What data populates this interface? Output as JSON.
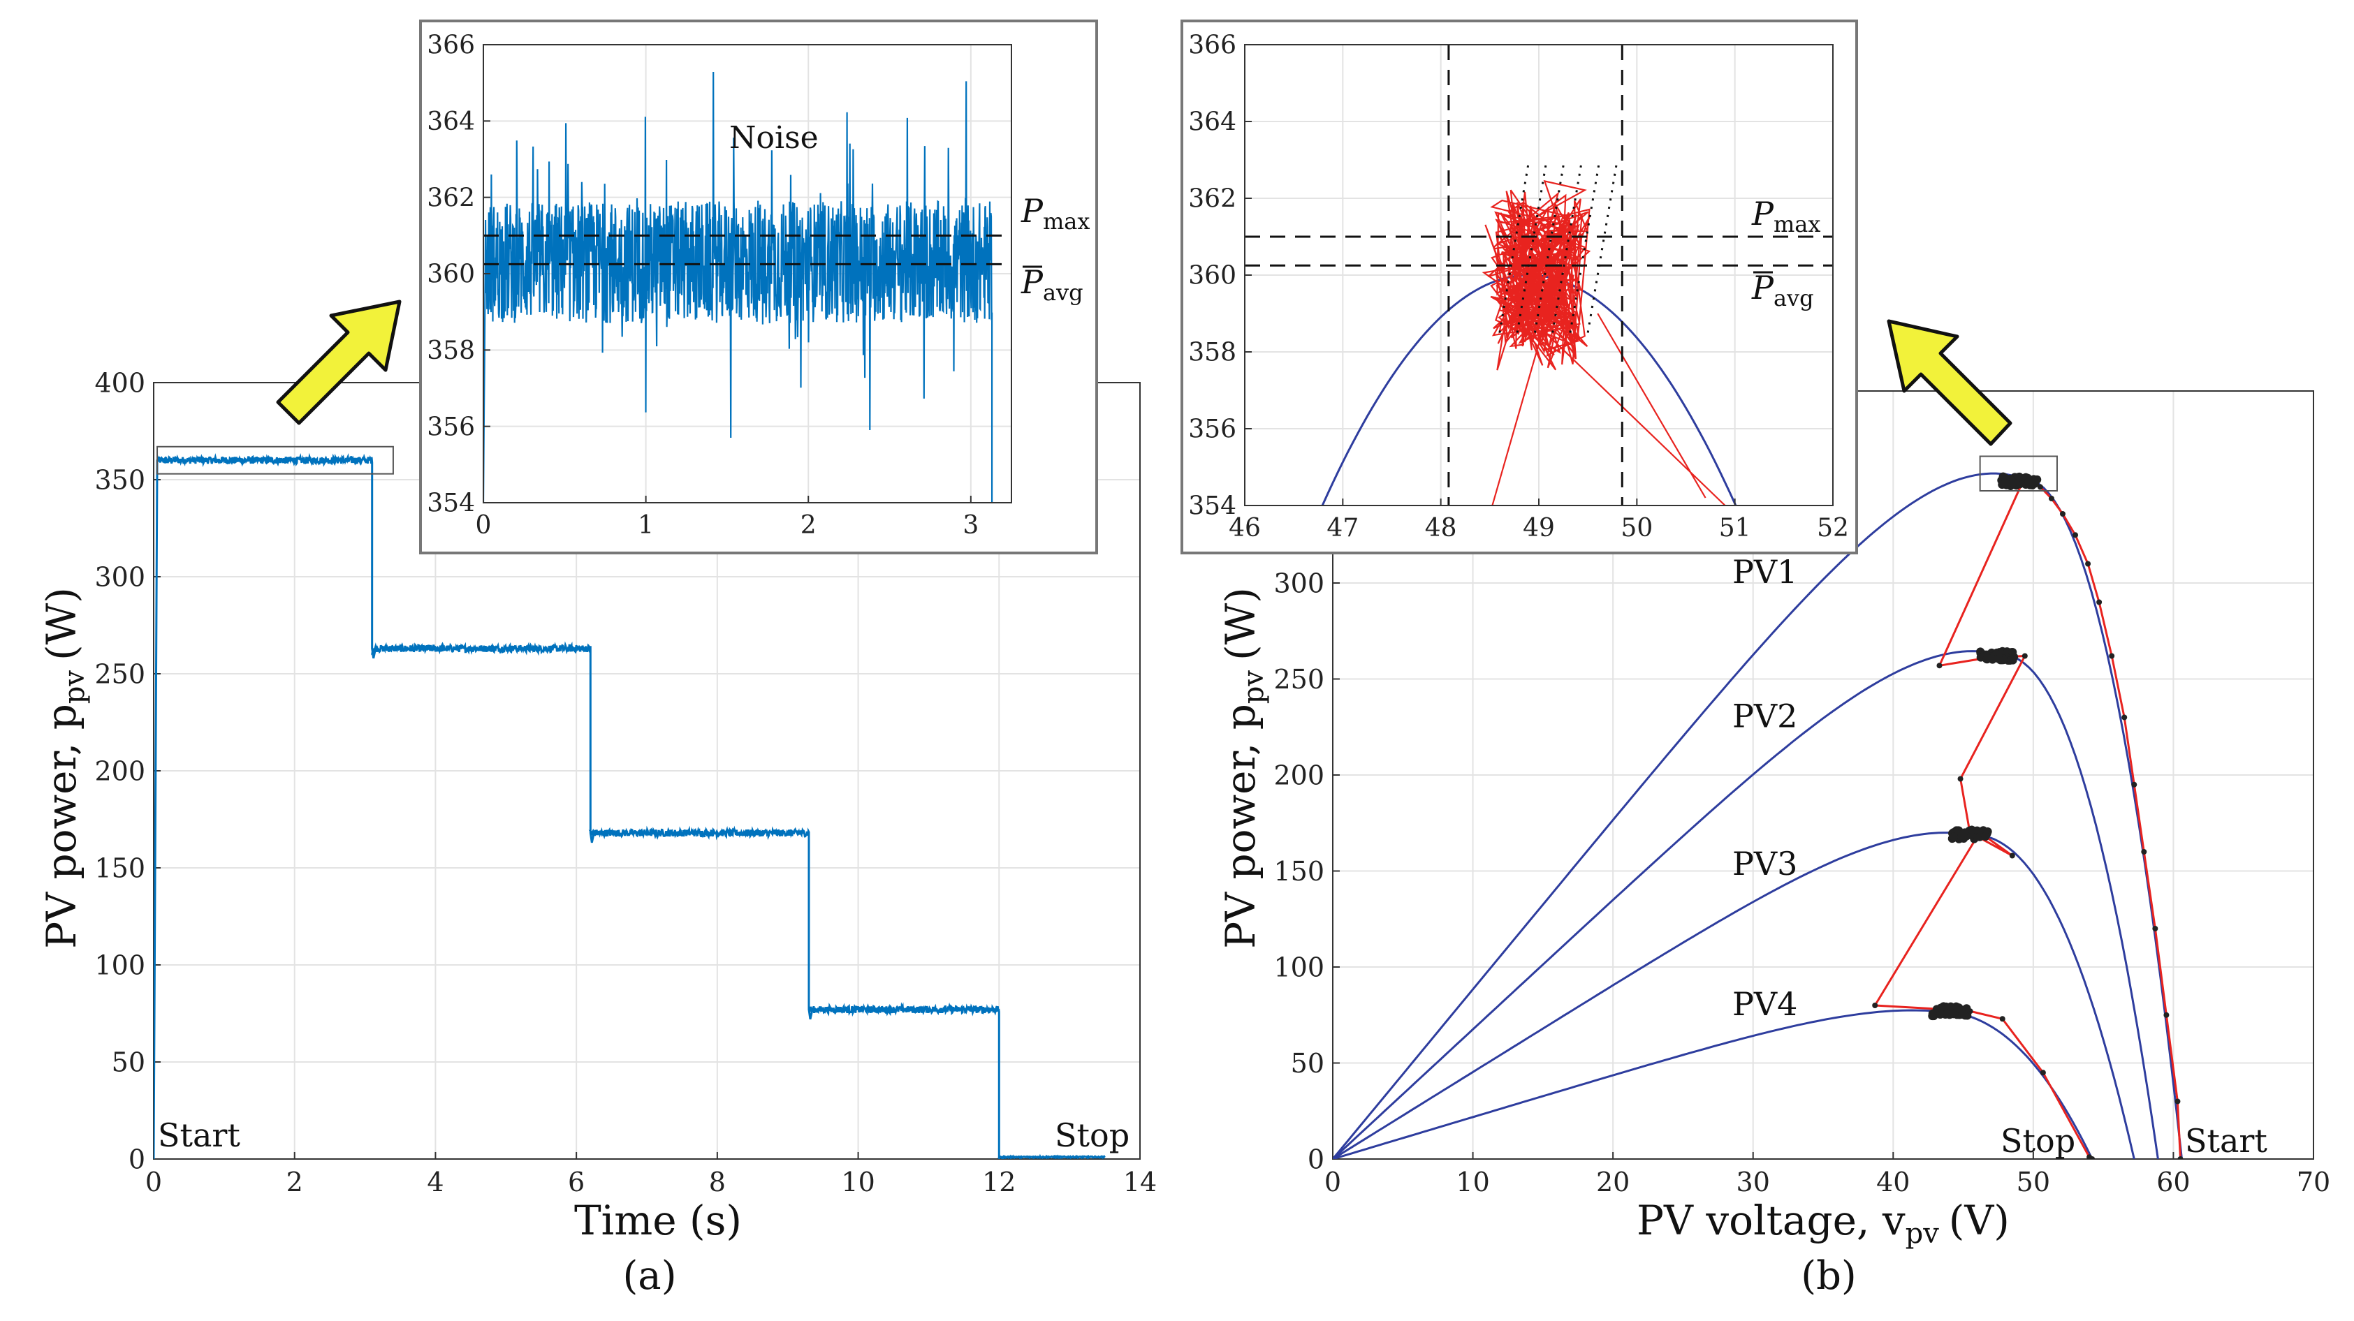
{
  "chart_data": [
    {
      "id": "a",
      "type": "line",
      "caption": "(a)",
      "xlabel": "Time (s)",
      "ylabel": "PV power, p",
      "ylabel_sub": "pv",
      "ylabel_unit": "(W)",
      "xlim": [
        0,
        14
      ],
      "ylim": [
        0,
        400
      ],
      "xticks": [
        0,
        2,
        4,
        6,
        8,
        10,
        12,
        14
      ],
      "yticks": [
        0,
        50,
        100,
        150,
        200,
        250,
        300,
        350,
        400
      ],
      "grid": true,
      "color": "#0072BD",
      "series": [
        {
          "name": "p_pv",
          "x": [
            0,
            0.05,
            3.1,
            3.1,
            6.2,
            6.2,
            9.3,
            9.3,
            12.0,
            12.0,
            13.5
          ],
          "y": [
            0,
            360,
            360,
            263,
            263,
            168,
            168,
            77,
            77,
            1,
            1
          ]
        }
      ],
      "zoom_box": {
        "x": [
          0.05,
          3.4
        ],
        "y": [
          353,
          367
        ]
      },
      "annotations": {
        "start": "Start",
        "stop": "Stop"
      }
    },
    {
      "id": "a-inset",
      "type": "line",
      "xlim": [
        0,
        3.25
      ],
      "ylim": [
        354,
        366
      ],
      "xticks": [
        0,
        1,
        2,
        3
      ],
      "yticks": [
        354,
        356,
        358,
        360,
        362,
        364,
        366
      ],
      "grid": true,
      "color": "#0072BD",
      "mean_level": 360.3,
      "noise_band": [
        357.5,
        363.5
      ],
      "end_time": 3.13,
      "p_max": 361.0,
      "p_avg": 360.25,
      "labels": {
        "noise": "Noise",
        "pmax": "P",
        "pmax_sub": "max",
        "pavg": "P",
        "pavg_sub": "avg"
      }
    },
    {
      "id": "b",
      "type": "line",
      "caption": "(b)",
      "xlabel": "PV voltage, v",
      "xlabel_sub": "pv",
      "xlabel_unit": "(V)",
      "ylabel": "PV power, p",
      "ylabel_sub": "pv",
      "ylabel_unit": "(W)",
      "xlim": [
        0,
        70
      ],
      "ylim": [
        0,
        400
      ],
      "xticks": [
        0,
        10,
        20,
        30,
        40,
        50,
        60,
        70
      ],
      "yticks": [
        0,
        50,
        100,
        150,
        200,
        250,
        300
      ],
      "grid": true,
      "curve_color": "#2E3D9E",
      "track_color": "#E8231F",
      "series": [
        {
          "name": "PV1",
          "vmp": 49.0,
          "pmp": 355,
          "voc": 60.6
        },
        {
          "name": "PV2",
          "vmp": 47.5,
          "pmp": 263,
          "voc": 58.9
        },
        {
          "name": "PV3",
          "vmp": 45.5,
          "pmp": 169,
          "voc": 57.2
        },
        {
          "name": "PV4",
          "vmp": 43.0,
          "pmp": 77,
          "voc": 54.2
        }
      ],
      "tracking_path": [
        [
          60.5,
          0
        ],
        [
          60.3,
          30
        ],
        [
          59.5,
          75
        ],
        [
          58.7,
          120
        ],
        [
          57.9,
          160
        ],
        [
          57.2,
          195
        ],
        [
          56.5,
          230
        ],
        [
          55.6,
          262
        ],
        [
          54.7,
          290
        ],
        [
          53.9,
          310
        ],
        [
          53.0,
          325
        ],
        [
          52.1,
          336
        ],
        [
          51.3,
          344
        ],
        [
          50.5,
          350
        ],
        [
          49.8,
          353
        ],
        [
          49.0,
          355
        ],
        [
          48.3,
          354
        ],
        [
          49.2,
          352
        ],
        [
          43.3,
          257
        ],
        [
          47.5,
          262
        ],
        [
          48.2,
          263
        ],
        [
          46.5,
          261
        ],
        [
          49.4,
          262
        ],
        [
          44.8,
          198
        ],
        [
          45.5,
          169
        ],
        [
          46.2,
          170
        ],
        [
          48.5,
          158
        ],
        [
          46.0,
          168
        ],
        [
          38.7,
          80
        ],
        [
          43.5,
          78
        ],
        [
          45.5,
          77
        ],
        [
          47.8,
          73
        ],
        [
          50.7,
          45
        ],
        [
          54.0,
          1
        ],
        [
          54.2,
          0
        ]
      ],
      "clusters": [
        [
          49.0,
          353
        ],
        [
          47.5,
          262
        ],
        [
          45.5,
          169
        ],
        [
          44.0,
          77
        ]
      ],
      "zoom_box": {
        "x": [
          46.2,
          51.7
        ],
        "y": [
          348,
          366
        ]
      },
      "annotations": {
        "start": "Start",
        "stop": "Stop"
      }
    },
    {
      "id": "b-inset",
      "type": "line",
      "xlim": [
        46,
        52
      ],
      "ylim": [
        354,
        366
      ],
      "xticks": [
        46,
        47,
        48,
        49,
        50,
        51,
        52
      ],
      "yticks": [
        354,
        356,
        358,
        360,
        362,
        364,
        366
      ],
      "grid": true,
      "v_lines": [
        48.08,
        49.85
      ],
      "p_max": 361.0,
      "p_avg": 360.25,
      "cloud_center": [
        49.0,
        360.0
      ],
      "cloud_spread": [
        0.6,
        2.6
      ],
      "labels": {
        "pmax": "P",
        "pmax_sub": "max",
        "pavg": "P",
        "pavg_sub": "avg"
      }
    }
  ],
  "colors": {
    "arrow_fill": "#F2F23A",
    "arrow_stroke": "#111111",
    "grid": "#E3E3E3"
  }
}
